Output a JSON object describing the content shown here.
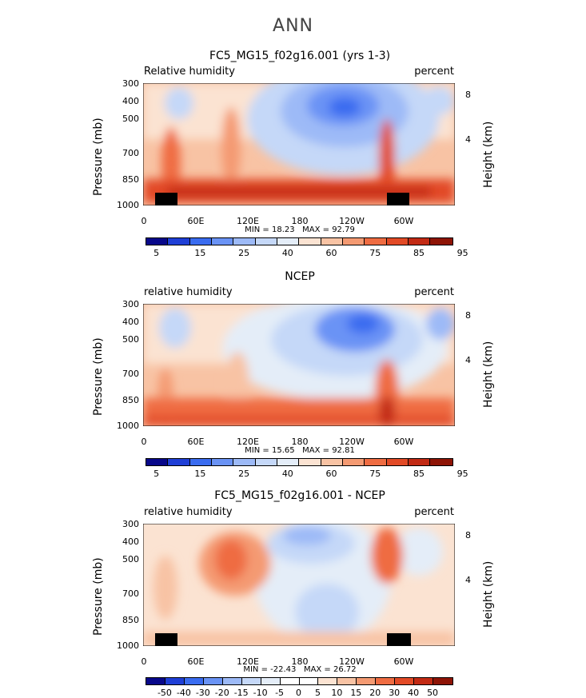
{
  "figure_title": "ANN",
  "chart_data": [
    {
      "type": "heatmap",
      "title": "FC5_MG15_f02g16.001 (yrs 1-3)",
      "left_label": "Relative humidity",
      "right_label": "percent",
      "ylabel": "Pressure (mb)",
      "ylabel_right": "Height (km)",
      "yticks": [
        "300",
        "400",
        "500",
        "700",
        "850",
        "1000"
      ],
      "yticks_right": [
        "8",
        "4"
      ],
      "xticks": [
        "0",
        "60E",
        "120E",
        "180",
        "120W",
        "60W"
      ],
      "min_text": "MIN = 18.23",
      "max_text": "MAX = 92.79",
      "colorbar_labels": [
        "5",
        "15",
        "25",
        "40",
        "60",
        "75",
        "85",
        "95"
      ]
    },
    {
      "type": "heatmap",
      "title": "NCEP",
      "left_label": "relative humidity",
      "right_label": "percent",
      "ylabel": "Pressure (mb)",
      "ylabel_right": "Height (km)",
      "yticks": [
        "300",
        "400",
        "500",
        "700",
        "850",
        "1000"
      ],
      "yticks_right": [
        "8",
        "4"
      ],
      "xticks": [
        "0",
        "60E",
        "120E",
        "180",
        "120W",
        "60W"
      ],
      "min_text": "MIN = 15.65",
      "max_text": "MAX = 92.81",
      "colorbar_labels": [
        "5",
        "15",
        "25",
        "40",
        "60",
        "75",
        "85",
        "95"
      ]
    },
    {
      "type": "heatmap",
      "title": "FC5_MG15_f02g16.001 - NCEP",
      "left_label": "relative humidity",
      "right_label": "percent",
      "ylabel": "Pressure (mb)",
      "ylabel_right": "Height (km)",
      "yticks": [
        "300",
        "400",
        "500",
        "700",
        "850",
        "1000"
      ],
      "yticks_right": [
        "8",
        "4"
      ],
      "xticks": [
        "0",
        "60E",
        "120E",
        "180",
        "120W",
        "60W"
      ],
      "min_text": "MIN = -22.43",
      "max_text": "MAX = 26.72",
      "colorbar_labels": [
        "-50",
        "-40",
        "-30",
        "-20",
        "-15",
        "-10",
        "-5",
        "0",
        "5",
        "10",
        "15",
        "20",
        "30",
        "40",
        "50"
      ]
    }
  ],
  "colors": {
    "abs_scale": [
      "#08088a",
      "#1f3fd6",
      "#3a6cf0",
      "#6a93f5",
      "#9dbaf7",
      "#c5d8f8",
      "#e4edf8",
      "#fbe3d2",
      "#f8c3a4",
      "#f49a72",
      "#ef6c42",
      "#e24a26",
      "#c22a14",
      "#8e1406"
    ],
    "diff_scale": [
      "#08088a",
      "#1f3fd6",
      "#3a6cf0",
      "#6a93f5",
      "#9dbaf7",
      "#c5d8f8",
      "#e4edf8",
      "#ffffff",
      "#ffffff",
      "#fbe3d2",
      "#f8c3a4",
      "#f49a72",
      "#ef6c42",
      "#e24a26",
      "#c22a14",
      "#8e1406"
    ]
  }
}
